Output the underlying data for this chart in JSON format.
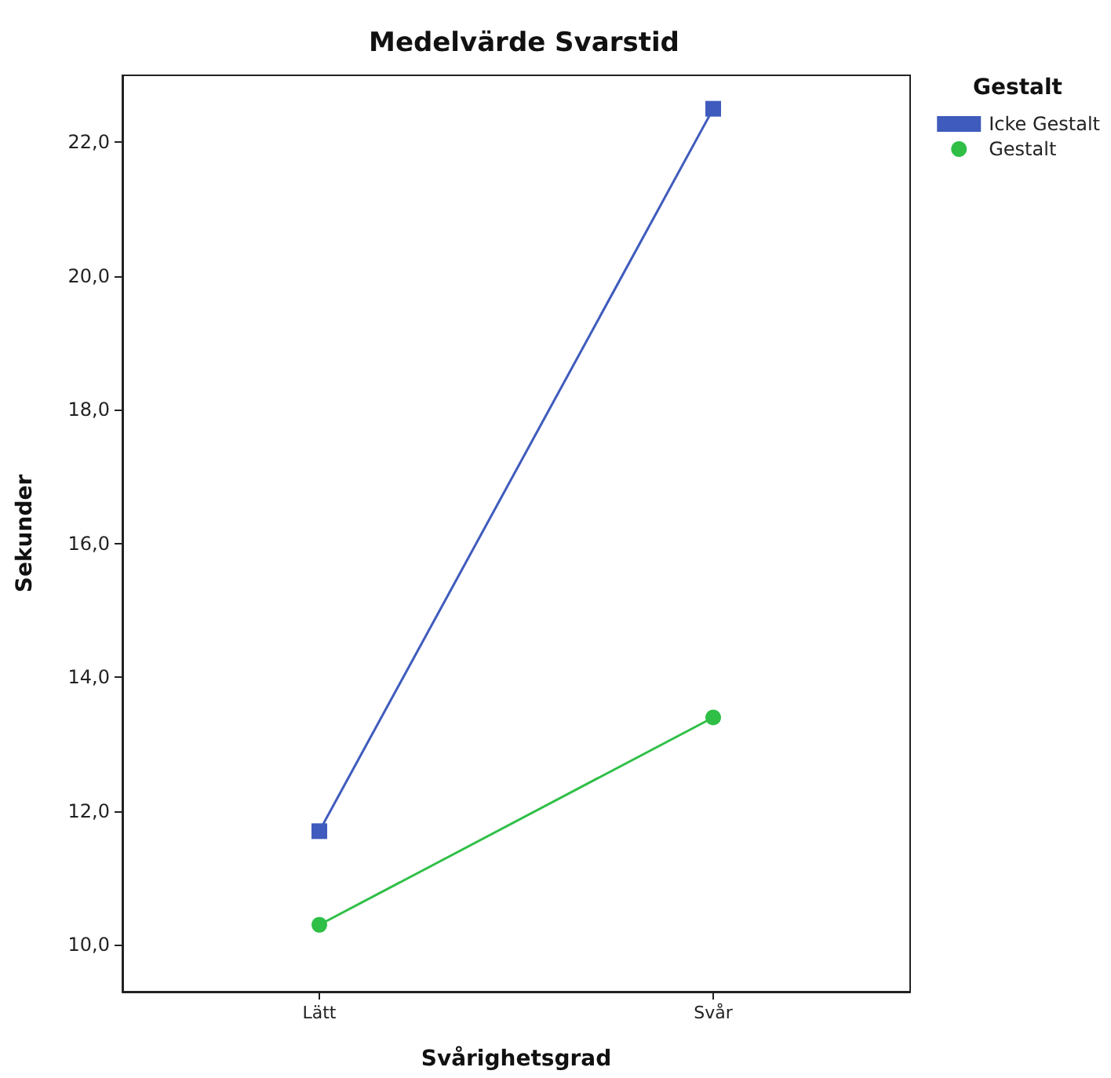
{
  "chart_data": {
    "type": "line",
    "title": "Medelvärde Svarstid",
    "xlabel": "Svårighetsgrad",
    "ylabel": "Sekunder",
    "legend_title": "Gestalt",
    "categories": [
      "Lätt",
      "Svår"
    ],
    "series": [
      {
        "name": "Icke Gestalt",
        "color": "#3f5bbd",
        "marker": "square",
        "values": [
          11.7,
          22.5
        ]
      },
      {
        "name": "Gestalt",
        "color": "#2fbf47",
        "marker": "circle",
        "values": [
          10.3,
          13.4
        ]
      }
    ],
    "ylim": [
      9.3,
      23.0
    ],
    "yticks": [
      {
        "value": 10,
        "label": "10,0"
      },
      {
        "value": 12,
        "label": "12,0"
      },
      {
        "value": 14,
        "label": "14,0"
      },
      {
        "value": 16,
        "label": "16,0"
      },
      {
        "value": 18,
        "label": "18,0"
      },
      {
        "value": 20,
        "label": "20,0"
      },
      {
        "value": 22,
        "label": "22,0"
      }
    ],
    "grid": false,
    "legend": "top right",
    "line_style": "solid"
  }
}
